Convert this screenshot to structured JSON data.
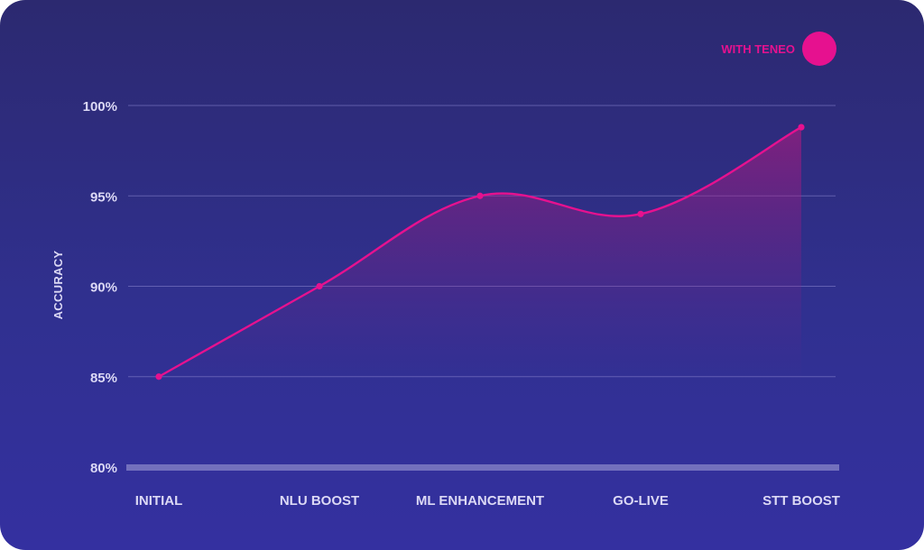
{
  "chart_data": {
    "type": "area",
    "categories": [
      "INITIAL",
      "NLU BOOST",
      "ML ENHANCEMENT",
      "GO-LIVE",
      "STT BOOST"
    ],
    "series": [
      {
        "name": "WITH TENEO",
        "values": [
          85,
          90,
          95,
          94,
          98.8
        ],
        "color": "#e6118f"
      }
    ],
    "ylabel": "ACCURACY",
    "xlabel": "",
    "title": "",
    "ylim": [
      80,
      100
    ],
    "yticks": [
      80,
      85,
      90,
      95,
      100
    ],
    "ytick_labels": [
      "80%",
      "85%",
      "90%",
      "95%",
      "100%"
    ],
    "grid": true,
    "legend_position": "top-right",
    "colors": {
      "background_top": "#2c2970",
      "background_bottom": "#3430a0",
      "line": "#e6118f",
      "fill": "#c0187f",
      "text": "#dcd9f5"
    }
  }
}
